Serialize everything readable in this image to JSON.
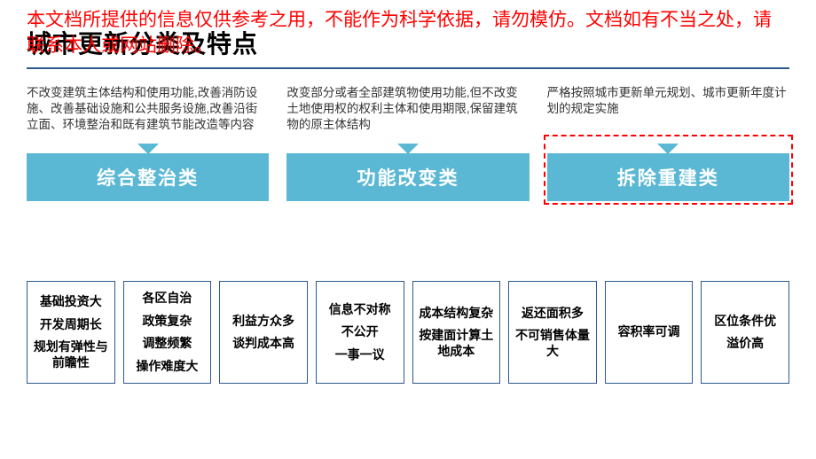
{
  "disclaimer": "本文档所提供的信息仅供参考之用，不能作为科学依据，请勿模仿。文档如有不当之处，请联系本人或网站删除。",
  "title": "城市更新分类及特点",
  "colors": {
    "accent": "#5bb8d4",
    "border": "#2c5a8c",
    "warn": "#ff0000",
    "text": "#333333",
    "bg": "#ffffff"
  },
  "categories": [
    {
      "desc": "不改变建筑主体结构和使用功能,改善消防设施、改善基础设施和公共服务设施,改善沿街立面、环境整治和既有建筑节能改造等内容",
      "label": "综合整治类",
      "highlighted": false
    },
    {
      "desc": "改变部分或者全部建筑物使用功能,但不改变土地使用权的权利主体和使用期限,保留建筑物的原主体结构",
      "label": "功能改变类",
      "highlighted": false
    },
    {
      "desc": "严格按照城市更新单元规划、城市更新年度计划的规定实施",
      "label": "拆除重建类",
      "highlighted": true
    }
  ],
  "cards": [
    {
      "lines": [
        "基础投资大",
        "开发周期长",
        "规划有弹性与前瞻性"
      ]
    },
    {
      "lines": [
        "各区自治",
        "政策复杂",
        "调整频繁",
        "操作难度大"
      ]
    },
    {
      "lines": [
        "利益方众多",
        "谈判成本高"
      ]
    },
    {
      "lines": [
        "信息不对称",
        "不公开",
        "一事一议"
      ]
    },
    {
      "lines": [
        "成本结构复杂",
        "按建面计算土地成本"
      ]
    },
    {
      "lines": [
        "返还面积多",
        "不可销售体量大"
      ]
    },
    {
      "lines": [
        "容积率可调"
      ]
    },
    {
      "lines": [
        "区位条件优",
        "溢价高"
      ]
    }
  ]
}
